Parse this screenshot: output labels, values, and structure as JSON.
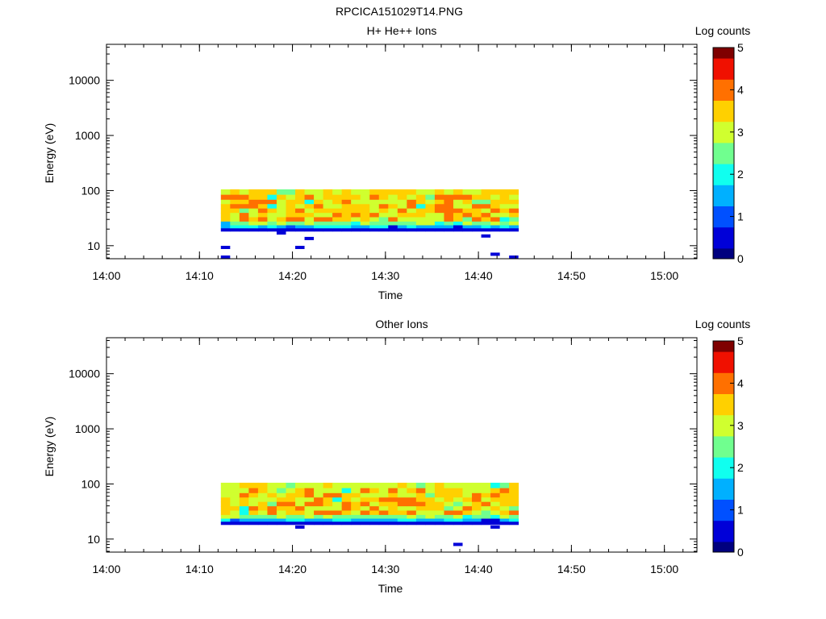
{
  "page": {
    "title": "RPCICA151029T14.PNG"
  },
  "colormap": [
    "#00007f",
    "#0000d8",
    "#0050ff",
    "#00b0ff",
    "#10ffef",
    "#70ff8f",
    "#d0ff2f",
    "#ffd000",
    "#ff7000",
    "#f01000",
    "#7f0000"
  ],
  "chart_data": [
    {
      "type": "heatmap",
      "title": "H+ He++ Ions",
      "xlabel": "Time",
      "ylabel": "Energy (eV)",
      "colorbar_label": "Log counts",
      "colorbar_ticks": [
        "0",
        "1",
        "2",
        "3",
        "4",
        "5"
      ],
      "clim": [
        0,
        5
      ],
      "y_scale": "log",
      "ylim": [
        5.8,
        45000
      ],
      "y_ticks": [
        10,
        100,
        1000,
        10000
      ],
      "y_tick_labels": [
        "10",
        "100",
        "1000",
        "10000"
      ],
      "x_ticks": [
        "14:00",
        "14:10",
        "14:20",
        "14:30",
        "14:40",
        "14:50",
        "15:00"
      ],
      "x_start": "14:00",
      "xlim_end": "15:03.5",
      "bins_start": "14:12.3",
      "bins_end": "14:44.3",
      "bin_minutes": 1,
      "energy_bins": [
        94,
        75,
        62,
        52,
        43,
        36,
        30,
        25,
        22
      ],
      "band_seed": 1,
      "sparse_points": [
        {
          "time": "14:12.3",
          "energy": 9.3,
          "value": 0.4
        },
        {
          "time": "14:12.3",
          "energy": 6.2,
          "value": 0.4
        },
        {
          "time": "14:18.3",
          "energy": 17,
          "value": 0.4
        },
        {
          "time": "14:20.3",
          "energy": 9.3,
          "value": 0.4
        },
        {
          "time": "14:21.3",
          "energy": 13.5,
          "value": 0.4
        },
        {
          "time": "14:40.3",
          "energy": 15,
          "value": 0.4
        },
        {
          "time": "14:41.3",
          "energy": 7,
          "value": 0.4
        },
        {
          "time": "14:43.3",
          "energy": 6.2,
          "value": 0.4
        }
      ]
    },
    {
      "type": "heatmap",
      "title": "Other Ions",
      "xlabel": "Time",
      "ylabel": "Energy (eV)",
      "colorbar_label": "Log counts",
      "colorbar_ticks": [
        "0",
        "1",
        "2",
        "3",
        "4",
        "5"
      ],
      "clim": [
        0,
        5
      ],
      "y_scale": "log",
      "ylim": [
        5.8,
        45000
      ],
      "y_ticks": [
        10,
        100,
        1000,
        10000
      ],
      "y_tick_labels": [
        "10",
        "100",
        "1000",
        "10000"
      ],
      "x_ticks": [
        "14:00",
        "14:10",
        "14:20",
        "14:30",
        "14:40",
        "14:50",
        "15:00"
      ],
      "x_start": "14:00",
      "xlim_end": "15:03.5",
      "bins_start": "14:12.3",
      "bins_end": "14:44.3",
      "bin_minutes": 1,
      "energy_bins": [
        94,
        75,
        62,
        52,
        43,
        36,
        30,
        25,
        22
      ],
      "band_seed": 2,
      "sparse_points": [
        {
          "time": "14:20.3",
          "energy": 16.5,
          "value": 0.4
        },
        {
          "time": "14:37.3",
          "energy": 8,
          "value": 0.4
        },
        {
          "time": "14:41.3",
          "energy": 16.5,
          "value": 0.4
        }
      ]
    }
  ]
}
